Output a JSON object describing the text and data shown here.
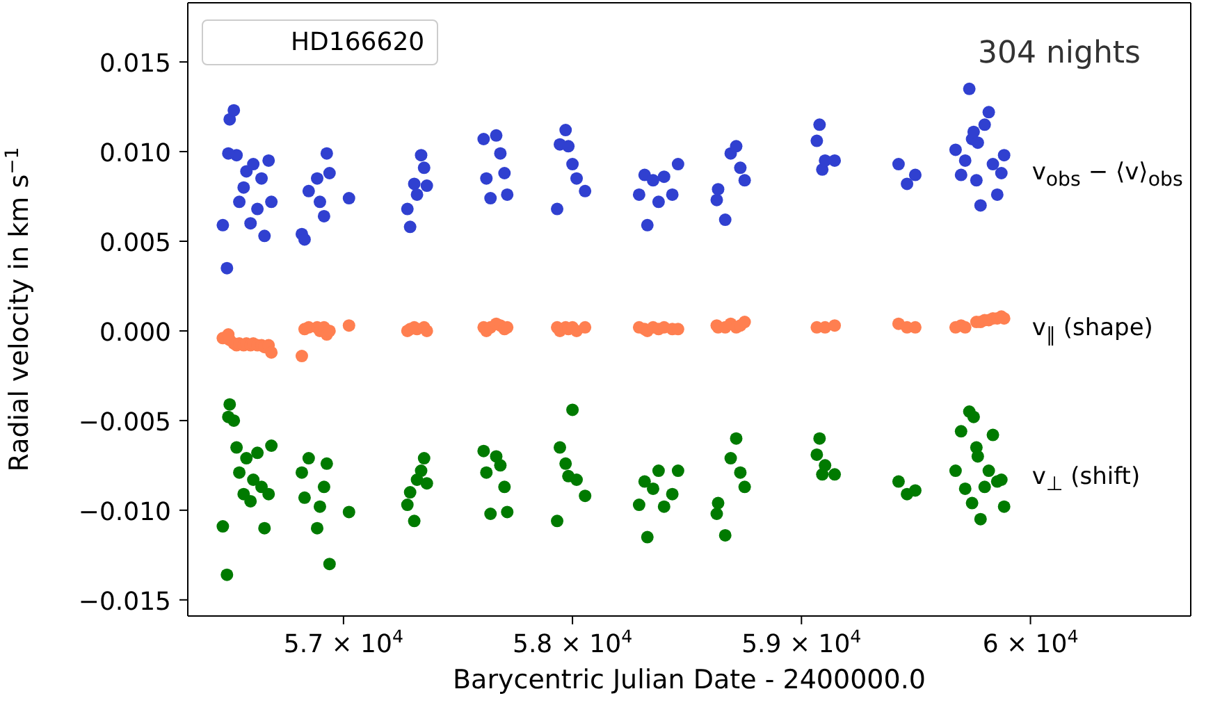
{
  "chart_data": {
    "type": "scatter",
    "xlabel": "Barycentric Julian Date - 2400000.0",
    "ylabel": "Radial velocity in km s$^{−1}$",
    "legend": "right",
    "annotations": [
      "HD166620",
      "304 nights"
    ],
    "marker": "circle",
    "grid": false,
    "xlim": [
      56320,
      60700
    ],
    "ylim": [
      -0.0159,
      0.0183
    ],
    "xticks": [
      {
        "value": 57000,
        "label": "5.7 × 10$^{4}$"
      },
      {
        "value": 58000,
        "label": "5.8 × 10$^{4}$"
      },
      {
        "value": 59000,
        "label": "5.9 × 10$^{4}$"
      },
      {
        "value": 60000,
        "label": "6 × 10$^{4}$"
      }
    ],
    "yticks": [
      {
        "value": -0.015,
        "label": "−0.015"
      },
      {
        "value": -0.01,
        "label": "−0.010"
      },
      {
        "value": -0.005,
        "label": "−0.005"
      },
      {
        "value": 0,
        "label": "0.000"
      },
      {
        "value": 0.005,
        "label": "0.005"
      },
      {
        "value": 0.01,
        "label": "0.010"
      },
      {
        "value": 0.015,
        "label": "0.015"
      }
    ],
    "x": [
      56473,
      56491,
      56503,
      56521,
      56533,
      56545,
      56564,
      56576,
      56594,
      56606,
      56624,
      56642,
      56655,
      56673,
      56685,
      56497,
      56818,
      56830,
      56848,
      56885,
      56897,
      56915,
      56927,
      56939,
      57024,
      57279,
      57291,
      57309,
      57321,
      57339,
      57352,
      57364,
      57612,
      57624,
      57642,
      57667,
      57685,
      57703,
      57715,
      57933,
      57945,
      57970,
      57982,
      58000,
      58018,
      58055,
      58291,
      58315,
      58327,
      58352,
      58376,
      58400,
      58436,
      58461,
      58630,
      58636,
      58667,
      58691,
      58715,
      58733,
      58752,
      59067,
      59079,
      59091,
      59103,
      59145,
      59424,
      59461,
      59497,
      59673,
      59697,
      59715,
      59733,
      59745,
      59764,
      59782,
      59800,
      59818,
      59836,
      59855,
      59873,
      59885,
      59770,
      59752
    ],
    "series": [
      {
        "name": "v$_{obs}$ − ⟨v⟩$_{obs}$",
        "color": "#3040d0",
        "values": [
          0.0059,
          0.0035,
          0.0118,
          0.0123,
          0.0098,
          0.0072,
          0.008,
          0.0089,
          0.006,
          0.0093,
          0.0068,
          0.0085,
          0.0053,
          0.0095,
          0.0072,
          0.0099,
          0.0054,
          0.0051,
          0.0078,
          0.0085,
          0.0072,
          0.0064,
          0.0099,
          0.0088,
          0.0074,
          0.0068,
          0.0058,
          0.0082,
          0.0076,
          0.0098,
          0.0091,
          0.0081,
          0.0107,
          0.0085,
          0.0074,
          0.0109,
          0.0099,
          0.0088,
          0.0076,
          0.0068,
          0.0104,
          0.0112,
          0.0103,
          0.0093,
          0.0085,
          0.0078,
          0.0076,
          0.0087,
          0.0059,
          0.0084,
          0.0072,
          0.0086,
          0.0076,
          0.0093,
          0.0073,
          0.0079,
          0.0062,
          0.0099,
          0.0103,
          0.0091,
          0.0084,
          0.0106,
          0.0115,
          0.009,
          0.0095,
          0.0095,
          0.0093,
          0.0082,
          0.0087,
          0.0101,
          0.0087,
          0.0095,
          0.0135,
          0.0107,
          0.0084,
          0.007,
          0.0115,
          0.0122,
          0.0093,
          0.0076,
          0.0088,
          0.0098,
          0.0105,
          0.0111
        ]
      },
      {
        "name": "v$_{∥}$ (shape)",
        "color": "#ff7f50",
        "values": [
          -0.0004,
          null,
          -0.0005,
          -0.0007,
          -0.0008,
          -0.0007,
          -0.0008,
          -0.0007,
          -0.0008,
          -0.0007,
          -0.0008,
          -0.0008,
          -0.0009,
          -0.0008,
          -0.0012,
          -0.0002,
          -0.0014,
          0.0001,
          0.0002,
          0.0002,
          0,
          0.0002,
          -0.0002,
          0,
          0.0003,
          0,
          0.0001,
          0.0002,
          0.0001,
          null,
          0.0002,
          0,
          0.0002,
          0,
          0.0002,
          0.0004,
          0.0003,
          0.0001,
          0.0002,
          0.0002,
          0,
          0.0002,
          0.0001,
          0.0002,
          0,
          0.0002,
          0.0002,
          0.0001,
          0,
          0.0002,
          0.0001,
          0.0002,
          0.0001,
          0.0001,
          0.0003,
          0.0002,
          0.0002,
          0.0004,
          0.0002,
          0.0003,
          0.0005,
          0.0002,
          null,
          null,
          0.0002,
          0.0003,
          0.0004,
          0.0002,
          0.0002,
          0.0002,
          0.0003,
          0.0002,
          null,
          null,
          0.0005,
          0.0005,
          0.0006,
          0.0006,
          0.0007,
          0.0007,
          0.0008,
          0.0007,
          null,
          null
        ]
      },
      {
        "name": "v$_{⊥}$ (shift)",
        "color": "#007a00",
        "values": [
          -0.0109,
          -0.0136,
          -0.0041,
          -0.005,
          -0.0065,
          -0.0079,
          -0.0091,
          -0.0071,
          -0.0095,
          -0.0083,
          -0.0068,
          -0.0087,
          -0.011,
          -0.0091,
          -0.0064,
          -0.0048,
          -0.0079,
          -0.0093,
          -0.0071,
          -0.011,
          -0.0098,
          -0.0087,
          -0.0074,
          -0.013,
          -0.0101,
          -0.0097,
          -0.009,
          -0.0106,
          -0.0083,
          -0.0078,
          -0.0071,
          -0.0085,
          -0.0067,
          -0.0079,
          -0.0102,
          -0.007,
          -0.0075,
          -0.0087,
          -0.0101,
          -0.0106,
          -0.0065,
          -0.0074,
          -0.0081,
          -0.0044,
          -0.0083,
          -0.0092,
          -0.0097,
          -0.0084,
          -0.0115,
          -0.0088,
          -0.0078,
          -0.0098,
          -0.0091,
          -0.0078,
          -0.0102,
          -0.0096,
          -0.0114,
          -0.0071,
          -0.006,
          -0.0079,
          -0.0087,
          -0.0069,
          -0.006,
          -0.008,
          -0.0075,
          -0.008,
          -0.0084,
          -0.0091,
          -0.0089,
          -0.0078,
          -0.0056,
          -0.0088,
          -0.0045,
          -0.0096,
          -0.0065,
          -0.0105,
          -0.0087,
          -0.0078,
          -0.0058,
          -0.0084,
          -0.0083,
          -0.0098,
          -0.007,
          -0.0048
        ]
      }
    ]
  }
}
